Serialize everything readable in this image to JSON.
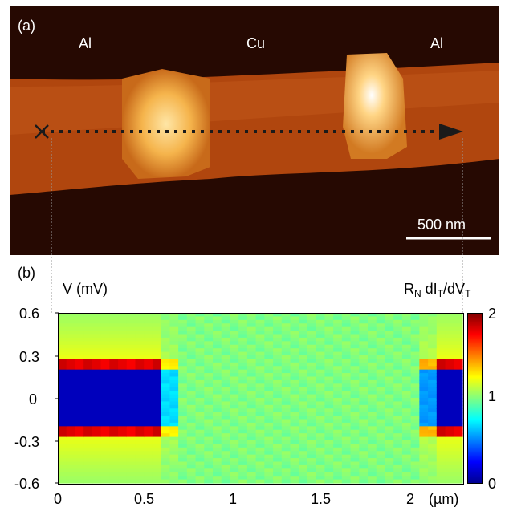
{
  "panel_a": {
    "label": "(a)",
    "regions": [
      "Al",
      "Cu",
      "Al"
    ],
    "scale_bar_label": "500 nm"
  },
  "panel_b": {
    "label": "(b)",
    "y_axis_label": "V (mV)",
    "colorbar_title_main": "R",
    "colorbar_title_sub1": "N",
    "colorbar_title_mid": " dI",
    "colorbar_title_sub2": "T",
    "colorbar_title_mid2": "/dV",
    "colorbar_title_sub3": "T",
    "x_unit_label": "(µm)",
    "y_ticks": [
      "0.6",
      "0.3",
      "0",
      "-0.3",
      "-0.6"
    ],
    "x_ticks": [
      "0",
      "0.5",
      "1",
      "1.5",
      "2"
    ],
    "colorbar_ticks": [
      "2",
      "1",
      "0"
    ],
    "colors": {
      "low": "#00008f",
      "mid": "#80ff80",
      "high": "#800000"
    }
  },
  "chart_data": {
    "type": "heatmap",
    "xlabel": "(µm)",
    "ylabel": "V (mV)",
    "xlim": [
      0,
      2.35
    ],
    "ylim": [
      -0.6,
      0.6
    ],
    "colorbar_range": [
      0,
      2
    ],
    "colorbar_label": "RN dIT/dVT",
    "regions": [
      {
        "x_range": [
          0,
          0.6
        ],
        "material": "Al",
        "feature": "superconducting gap: low conductance near 0 mV, coherence peaks near ±0.25 mV"
      },
      {
        "x_range": [
          0.6,
          2.2
        ],
        "material": "Cu",
        "feature": "near-normal conductance ~1"
      },
      {
        "x_range": [
          2.2,
          2.35
        ],
        "material": "Al",
        "feature": "superconducting gap"
      }
    ]
  }
}
